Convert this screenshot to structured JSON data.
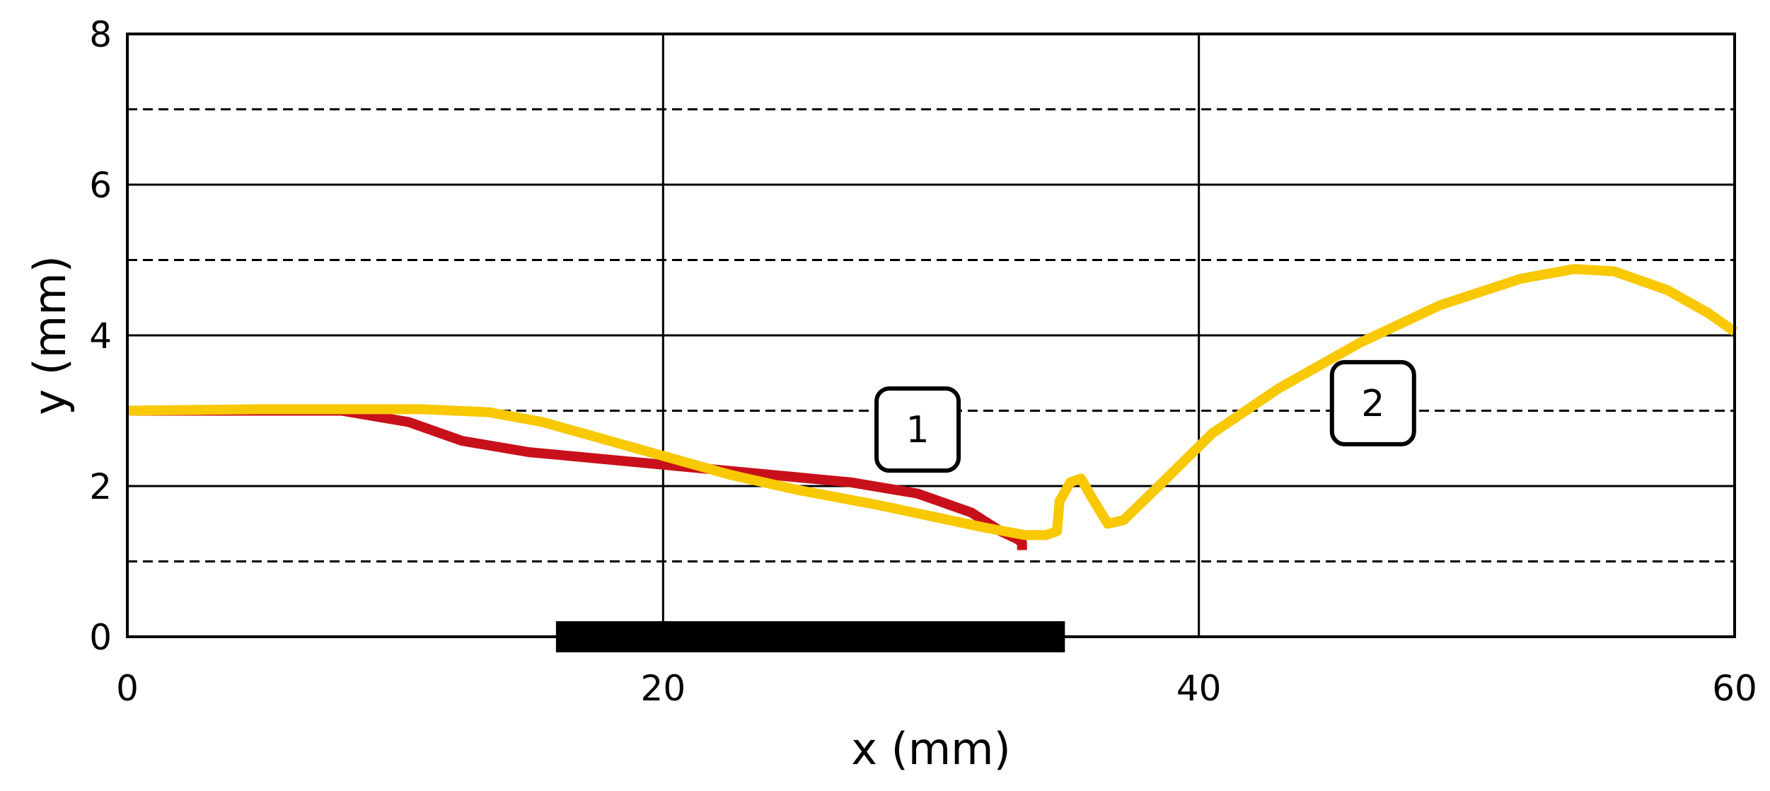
{
  "chart_data": {
    "type": "line",
    "xlabel": "x (mm)",
    "ylabel": "y (mm)",
    "xlim": [
      0,
      60
    ],
    "ylim": [
      0,
      8
    ],
    "x_ticks": [
      0,
      20,
      40,
      60
    ],
    "y_ticks": [
      0,
      2,
      4,
      6,
      8
    ],
    "grid_x_solid": [
      20,
      40
    ],
    "grid_y_solid": [
      2,
      4,
      6
    ],
    "grid_y_dashed": [
      1,
      3,
      5,
      7
    ],
    "bar": {
      "x_start": 16,
      "x_end": 35,
      "y": 0,
      "color": "#000000"
    },
    "series": [
      {
        "color": "#c8101a",
        "points": [
          [
            0,
            3.0
          ],
          [
            8,
            3.0
          ],
          [
            10.5,
            2.85
          ],
          [
            12.5,
            2.6
          ],
          [
            15,
            2.45
          ],
          [
            18,
            2.35
          ],
          [
            21,
            2.25
          ],
          [
            24,
            2.15
          ],
          [
            27,
            2.05
          ],
          [
            29.5,
            1.9
          ],
          [
            31.5,
            1.65
          ],
          [
            32.6,
            1.4
          ],
          [
            33.2,
            1.3
          ],
          [
            33.4,
            1.25
          ],
          [
            33.4,
            1.15
          ]
        ]
      },
      {
        "color": "#f8c800",
        "points": [
          [
            0,
            3.0
          ],
          [
            5,
            3.02
          ],
          [
            11,
            3.02
          ],
          [
            13.5,
            2.98
          ],
          [
            15.5,
            2.85
          ],
          [
            17.5,
            2.65
          ],
          [
            20,
            2.4
          ],
          [
            22.5,
            2.15
          ],
          [
            25,
            1.95
          ],
          [
            28,
            1.75
          ],
          [
            30,
            1.6
          ],
          [
            32,
            1.45
          ],
          [
            33.5,
            1.35
          ],
          [
            34.3,
            1.35
          ],
          [
            34.7,
            1.4
          ],
          [
            34.8,
            1.8
          ],
          [
            35.2,
            2.05
          ],
          [
            35.6,
            2.1
          ],
          [
            36.0,
            1.85
          ],
          [
            36.6,
            1.5
          ],
          [
            37.2,
            1.55
          ],
          [
            38.5,
            2.0
          ],
          [
            40.5,
            2.7
          ],
          [
            43,
            3.3
          ],
          [
            46,
            3.9
          ],
          [
            49,
            4.4
          ],
          [
            52,
            4.75
          ],
          [
            54,
            4.88
          ],
          [
            55.5,
            4.85
          ],
          [
            57.5,
            4.6
          ],
          [
            59,
            4.3
          ],
          [
            60,
            4.05
          ]
        ]
      }
    ],
    "annotations": [
      {
        "label": "1",
        "x": 29.5,
        "y": 2.75
      },
      {
        "label": "2",
        "x": 46.5,
        "y": 3.1
      }
    ]
  }
}
